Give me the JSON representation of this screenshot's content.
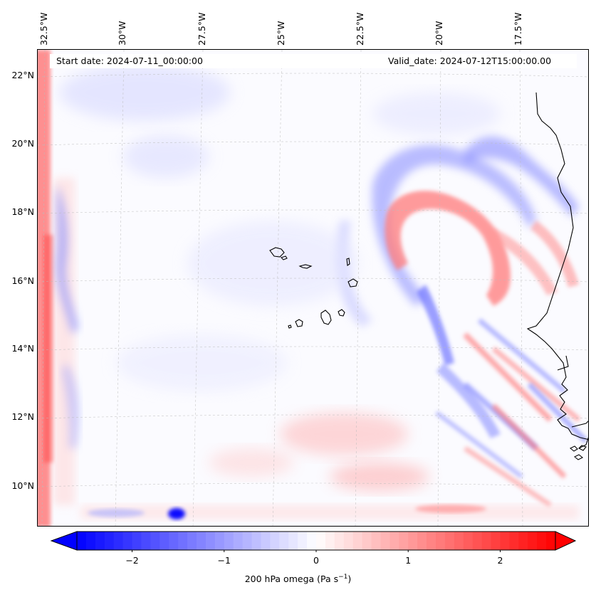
{
  "map": {
    "title_left": "Start date: 2024-07-11_00:00:00",
    "title_right": "Valid_date: 2024-07-12T15:00:00.00",
    "longitude_labels": [
      "32.5°W",
      "30°W",
      "27.5°W",
      "25°W",
      "22.5°W",
      "20°W",
      "17.5°W"
    ],
    "latitude_labels": [
      "22°N",
      "20°N",
      "18°N",
      "16°N",
      "14°N",
      "12°N",
      "10°N"
    ],
    "variable": "200 hPa omega",
    "colors": {
      "negative": "#0000ff",
      "neutral": "#ffffff",
      "positive": "#ff0000",
      "coast": "#000000"
    }
  },
  "colorbar": {
    "ticks": [
      "−2",
      "−1",
      "0",
      "1",
      "2"
    ],
    "tick_values": [
      -2,
      -1,
      0,
      1,
      2
    ],
    "range": [
      -2.6,
      2.6
    ],
    "label_main": "200 hPa omega (Pa s",
    "label_exp": "−1",
    "label_close": ")"
  }
}
